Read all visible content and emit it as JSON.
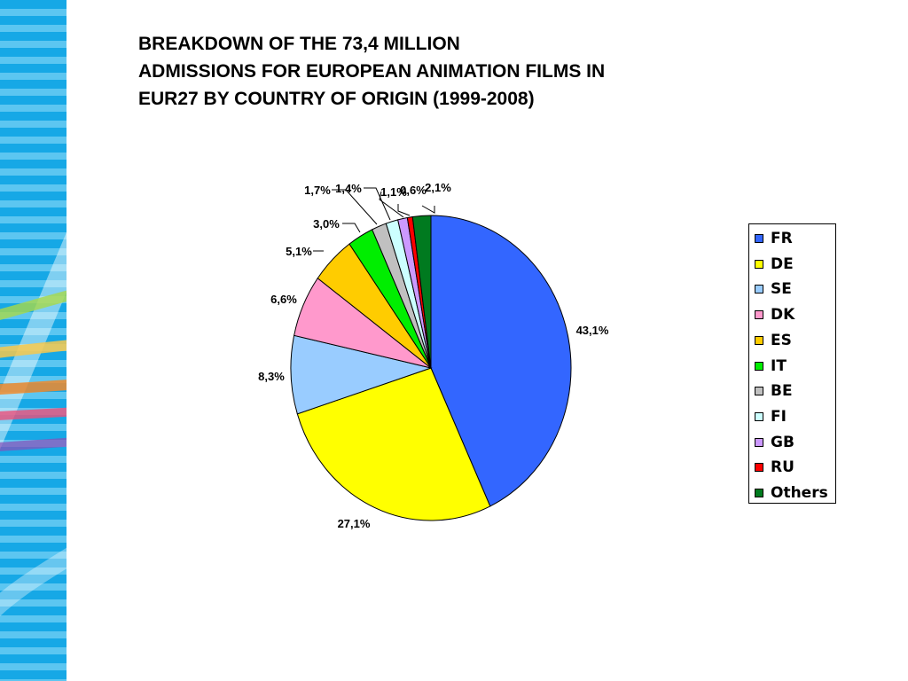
{
  "chart_data": {
    "type": "pie",
    "title_lines": [
      "BREAKDOWN OF THE 73,4 MILLION",
      "ADMISSIONS FOR EUROPEAN ANIMATION FILMS IN",
      "EUR27 BY COUNTRY OF ORIGIN (1999-2008)"
    ],
    "slices": [
      {
        "name": "FR",
        "value": 43.1,
        "label": "43,1%",
        "color": "#3366ff"
      },
      {
        "name": "DE",
        "value": 27.1,
        "label": "27,1%",
        "color": "#ffff00"
      },
      {
        "name": "SE",
        "value": 8.3,
        "label": "8,3%",
        "color": "#99ccff"
      },
      {
        "name": "DK",
        "value": 6.6,
        "label": "6,6%",
        "color": "#ff99cc"
      },
      {
        "name": "ES",
        "value": 5.1,
        "label": "5,1%",
        "color": "#ffcc00"
      },
      {
        "name": "IT",
        "value": 3.0,
        "label": "3,0%",
        "color": "#00ee00"
      },
      {
        "name": "BE",
        "value": 1.7,
        "label": "1,7%",
        "color": "#c0c0c0"
      },
      {
        "name": "FI",
        "value": 1.4,
        "label": "1,4%",
        "color": "#ccffff"
      },
      {
        "name": "GB",
        "value": 1.1,
        "label": "1,1%",
        "color": "#cc99ff"
      },
      {
        "name": "RU",
        "value": 0.6,
        "label": "0,6%",
        "color": "#ff0000"
      },
      {
        "name": "Others",
        "value": 2.1,
        "label": "2,1%",
        "color": "#007a1f"
      }
    ],
    "legend_position": "right",
    "start_angle": "12 o'clock",
    "direction": "clockwise"
  }
}
